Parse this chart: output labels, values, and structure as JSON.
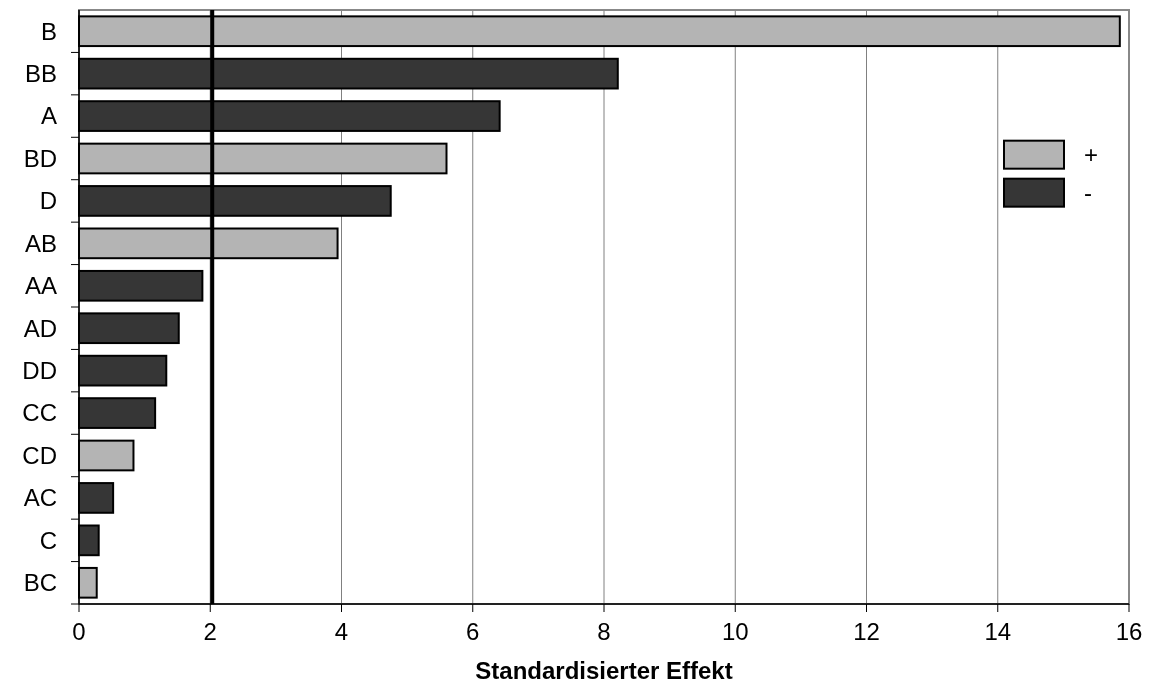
{
  "chart_data": {
    "type": "bar",
    "orientation": "horizontal",
    "xlabel": "Standardisierter Effekt",
    "categories": [
      "B",
      "BB",
      "A",
      "BD",
      "D",
      "AB",
      "AA",
      "AD",
      "DD",
      "CC",
      "CD",
      "AC",
      "C",
      "BC"
    ],
    "series": [
      {
        "name": "+",
        "color": "#b4b4b4",
        "values": [
          15.86,
          null,
          null,
          5.6,
          null,
          3.94,
          null,
          null,
          null,
          null,
          0.83,
          null,
          null,
          0.27
        ]
      },
      {
        "name": "-",
        "color": "#363636",
        "values": [
          null,
          8.21,
          6.41,
          null,
          4.75,
          null,
          1.88,
          1.52,
          1.33,
          1.16,
          null,
          0.52,
          0.3,
          null
        ]
      }
    ],
    "xlim": [
      0,
      16
    ],
    "xticks": [
      0,
      2,
      4,
      6,
      8,
      10,
      12,
      14,
      16
    ],
    "grid": "x",
    "legend": "right",
    "ref_lines": [
      {
        "axis": "x",
        "value": 2.03,
        "color": "#000000"
      }
    ]
  }
}
